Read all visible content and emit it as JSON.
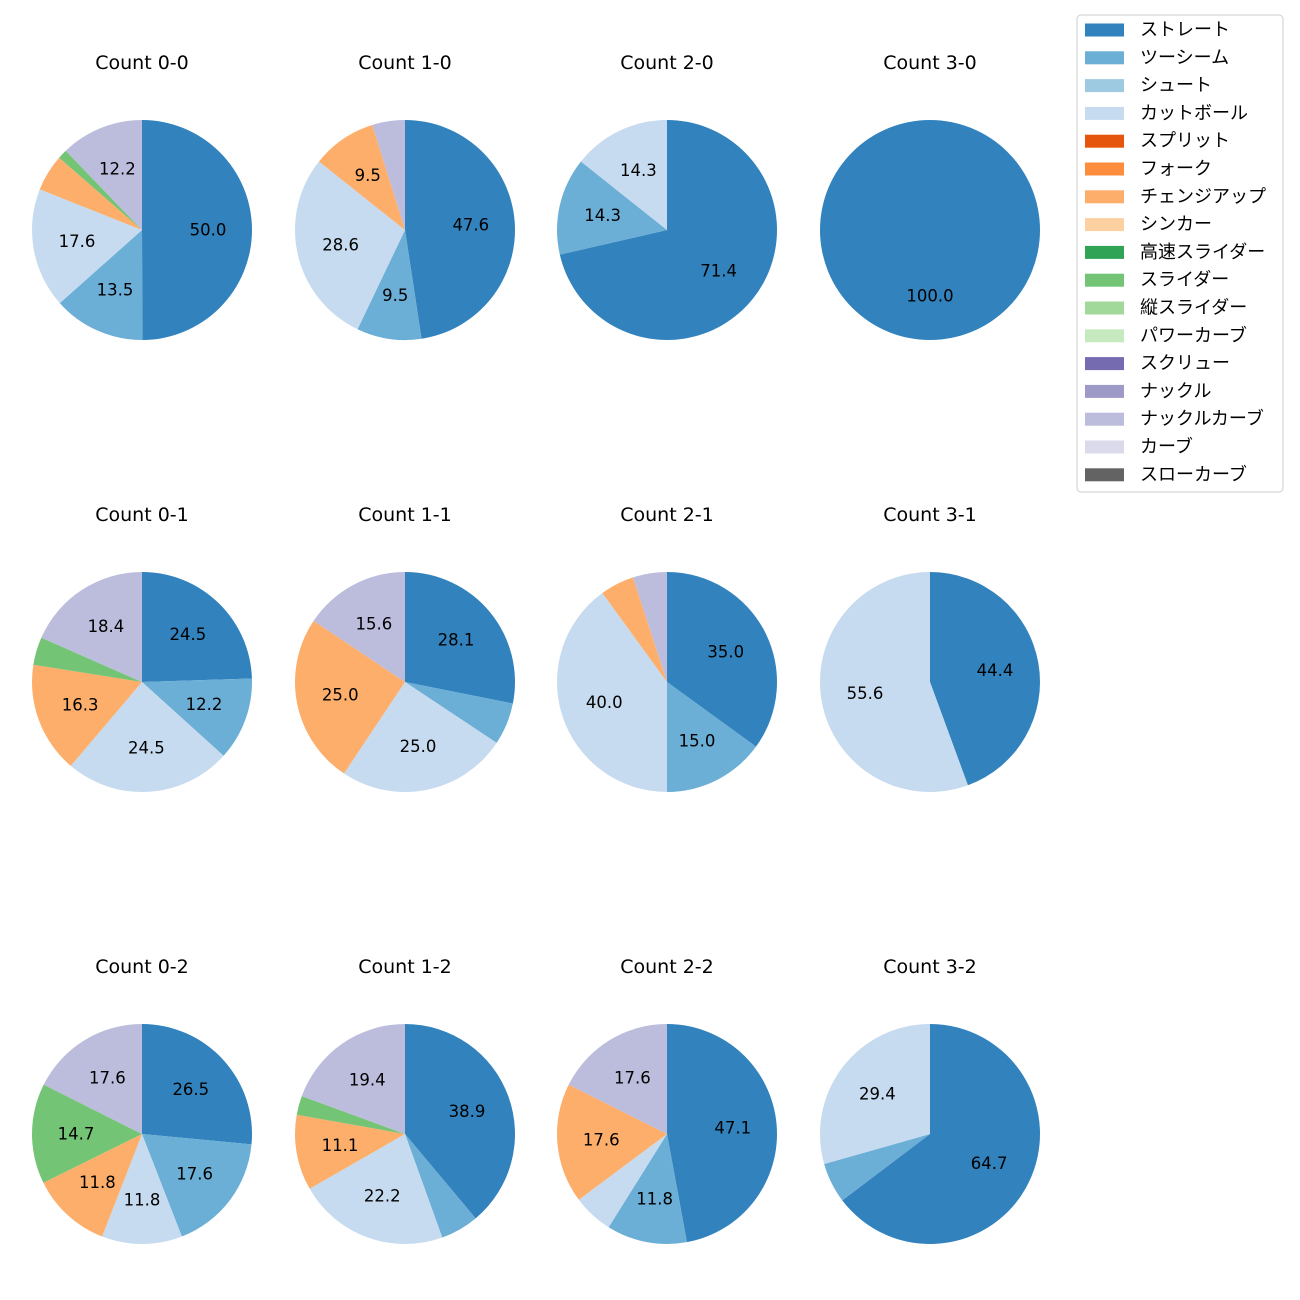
{
  "legend": {
    "title": "",
    "entries": [
      {
        "label": "ストレート",
        "color": "#3182bd"
      },
      {
        "label": "ツーシーム",
        "color": "#6baed6"
      },
      {
        "label": "シュート",
        "color": "#9ecae1"
      },
      {
        "label": "カットボール",
        "color": "#c6dbef"
      },
      {
        "label": "スプリット",
        "color": "#e6550d"
      },
      {
        "label": "フォーク",
        "color": "#fd8d3c"
      },
      {
        "label": "チェンジアップ",
        "color": "#fdae6b"
      },
      {
        "label": "シンカー",
        "color": "#fdd0a2"
      },
      {
        "label": "高速スライダー",
        "color": "#31a354"
      },
      {
        "label": "スライダー",
        "color": "#74c476"
      },
      {
        "label": "縦スライダー",
        "color": "#a1d99b"
      },
      {
        "label": "パワーカーブ",
        "color": "#c7e9c0"
      },
      {
        "label": "スクリュー",
        "color": "#756bb1"
      },
      {
        "label": "ナックル",
        "color": "#9e9ac8"
      },
      {
        "label": "ナックルカーブ",
        "color": "#bcbddc"
      },
      {
        "label": "カーブ",
        "color": "#dadaeb"
      },
      {
        "label": "スローカーブ",
        "color": "#636363"
      }
    ]
  },
  "chart_data": [
    {
      "type": "pie",
      "title": "Count 0-0",
      "slices": [
        {
          "name": "ストレート",
          "value": 50.0,
          "label": "50.0"
        },
        {
          "name": "ツーシーム",
          "value": 13.5,
          "label": "13.5"
        },
        {
          "name": "カットボール",
          "value": 17.6,
          "label": "17.6"
        },
        {
          "name": "チェンジアップ",
          "value": 5.4,
          "label": ""
        },
        {
          "name": "スライダー",
          "value": 1.4,
          "label": ""
        },
        {
          "name": "ナックルカーブ",
          "value": 12.2,
          "label": "12.2"
        }
      ]
    },
    {
      "type": "pie",
      "title": "Count 1-0",
      "slices": [
        {
          "name": "ストレート",
          "value": 47.6,
          "label": "47.6"
        },
        {
          "name": "ツーシーム",
          "value": 9.5,
          "label": "9.5"
        },
        {
          "name": "カットボール",
          "value": 28.6,
          "label": "28.6"
        },
        {
          "name": "チェンジアップ",
          "value": 9.5,
          "label": "9.5"
        },
        {
          "name": "ナックルカーブ",
          "value": 4.8,
          "label": ""
        }
      ]
    },
    {
      "type": "pie",
      "title": "Count 2-0",
      "slices": [
        {
          "name": "ストレート",
          "value": 71.4,
          "label": "71.4"
        },
        {
          "name": "ツーシーム",
          "value": 14.3,
          "label": "14.3"
        },
        {
          "name": "カットボール",
          "value": 14.3,
          "label": "14.3"
        }
      ]
    },
    {
      "type": "pie",
      "title": "Count 3-0",
      "slices": [
        {
          "name": "ストレート",
          "value": 100.0,
          "label": "100.0"
        }
      ]
    },
    {
      "type": "pie",
      "title": "Count 0-1",
      "slices": [
        {
          "name": "ストレート",
          "value": 24.5,
          "label": "24.5"
        },
        {
          "name": "ツーシーム",
          "value": 12.2,
          "label": "12.2"
        },
        {
          "name": "カットボール",
          "value": 24.5,
          "label": "24.5"
        },
        {
          "name": "チェンジアップ",
          "value": 16.3,
          "label": "16.3"
        },
        {
          "name": "スライダー",
          "value": 4.1,
          "label": ""
        },
        {
          "name": "ナックルカーブ",
          "value": 18.4,
          "label": "18.4"
        }
      ]
    },
    {
      "type": "pie",
      "title": "Count 1-1",
      "slices": [
        {
          "name": "ストレート",
          "value": 28.1,
          "label": "28.1"
        },
        {
          "name": "ツーシーム",
          "value": 6.2,
          "label": ""
        },
        {
          "name": "カットボール",
          "value": 25.0,
          "label": "25.0"
        },
        {
          "name": "チェンジアップ",
          "value": 25.0,
          "label": "25.0"
        },
        {
          "name": "ナックルカーブ",
          "value": 15.6,
          "label": "15.6"
        }
      ]
    },
    {
      "type": "pie",
      "title": "Count 2-1",
      "slices": [
        {
          "name": "ストレート",
          "value": 35.0,
          "label": "35.0"
        },
        {
          "name": "ツーシーム",
          "value": 15.0,
          "label": "15.0"
        },
        {
          "name": "カットボール",
          "value": 40.0,
          "label": "40.0"
        },
        {
          "name": "チェンジアップ",
          "value": 5.0,
          "label": ""
        },
        {
          "name": "ナックルカーブ",
          "value": 5.0,
          "label": ""
        }
      ]
    },
    {
      "type": "pie",
      "title": "Count 3-1",
      "slices": [
        {
          "name": "ストレート",
          "value": 44.4,
          "label": "44.4"
        },
        {
          "name": "カットボール",
          "value": 55.6,
          "label": "55.6"
        }
      ]
    },
    {
      "type": "pie",
      "title": "Count 0-2",
      "slices": [
        {
          "name": "ストレート",
          "value": 26.5,
          "label": "26.5"
        },
        {
          "name": "ツーシーム",
          "value": 17.6,
          "label": "17.6"
        },
        {
          "name": "カットボール",
          "value": 11.8,
          "label": "11.8"
        },
        {
          "name": "チェンジアップ",
          "value": 11.8,
          "label": "11.8"
        },
        {
          "name": "スライダー",
          "value": 14.7,
          "label": "14.7"
        },
        {
          "name": "ナックルカーブ",
          "value": 17.6,
          "label": "17.6"
        }
      ]
    },
    {
      "type": "pie",
      "title": "Count 1-2",
      "slices": [
        {
          "name": "ストレート",
          "value": 38.9,
          "label": "38.9"
        },
        {
          "name": "ツーシーム",
          "value": 5.6,
          "label": ""
        },
        {
          "name": "カットボール",
          "value": 22.2,
          "label": "22.2"
        },
        {
          "name": "チェンジアップ",
          "value": 11.1,
          "label": "11.1"
        },
        {
          "name": "スライダー",
          "value": 2.8,
          "label": ""
        },
        {
          "name": "ナックルカーブ",
          "value": 19.4,
          "label": "19.4"
        }
      ]
    },
    {
      "type": "pie",
      "title": "Count 2-2",
      "slices": [
        {
          "name": "ストレート",
          "value": 47.1,
          "label": "47.1"
        },
        {
          "name": "ツーシーム",
          "value": 11.8,
          "label": "11.8"
        },
        {
          "name": "カットボール",
          "value": 5.9,
          "label": ""
        },
        {
          "name": "チェンジアップ",
          "value": 17.6,
          "label": "17.6"
        },
        {
          "name": "ナックルカーブ",
          "value": 17.6,
          "label": "17.6"
        }
      ]
    },
    {
      "type": "pie",
      "title": "Count 3-2",
      "slices": [
        {
          "name": "ストレート",
          "value": 64.7,
          "label": "64.7"
        },
        {
          "name": "ツーシーム",
          "value": 5.9,
          "label": ""
        },
        {
          "name": "カットボール",
          "value": 29.4,
          "label": "29.4"
        }
      ]
    }
  ]
}
